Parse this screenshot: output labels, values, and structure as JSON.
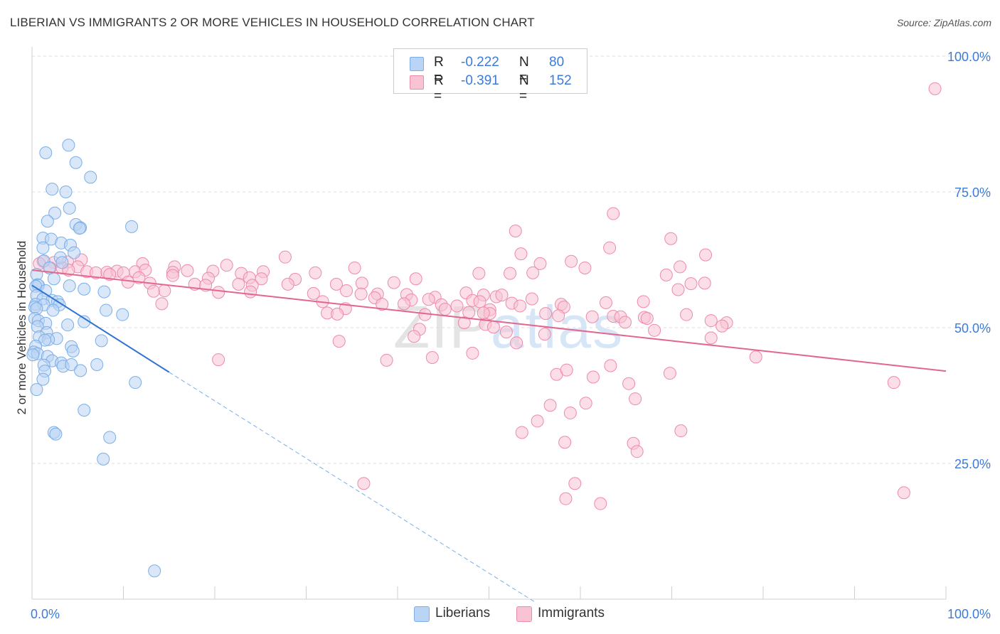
{
  "title": "LIBERIAN VS IMMIGRANTS 2 OR MORE VEHICLES IN HOUSEHOLD CORRELATION CHART",
  "source": "Source: ZipAtlas.com",
  "watermark": {
    "zip": "ZIP",
    "atlas": "atlas"
  },
  "legend": {
    "r_label": "R =",
    "n_label": "N =",
    "rows": [
      {
        "name": "Liberians",
        "r": "-0.222",
        "n": "80",
        "color": "#7aaee8",
        "fill": "#b9d4f4"
      },
      {
        "name": "Immigrants",
        "r": "-0.391",
        "n": "152",
        "color": "#ee8aaa",
        "fill": "#f8c3d3"
      }
    ]
  },
  "chart_data": {
    "type": "scatter",
    "ylabel": "2 or more Vehicles in Household",
    "xlabel": "",
    "x_tick_labels": [
      "0.0%",
      "100.0%"
    ],
    "y_tick_labels": [
      "25.0%",
      "50.0%",
      "75.0%",
      "100.0%"
    ],
    "y_ticks": [
      25,
      50,
      75,
      100
    ],
    "xlim": [
      0,
      100
    ],
    "ylim": [
      0,
      100
    ],
    "grid": true,
    "series": [
      {
        "name": "Liberians",
        "color": "#7aaee8",
        "trend": {
          "x0": 0,
          "y0": 57.8,
          "x1": 15,
          "y1": 41.8,
          "dash_to_x": 55,
          "dash_to_y": -0.5
        },
        "points": [
          [
            4.0,
            83.6
          ],
          [
            1.5,
            82.2
          ],
          [
            4.8,
            80.4
          ],
          [
            6.4,
            77.7
          ],
          [
            2.2,
            75.5
          ],
          [
            3.7,
            75.0
          ],
          [
            4.1,
            72.0
          ],
          [
            2.5,
            71.1
          ],
          [
            1.7,
            69.6
          ],
          [
            4.8,
            69.0
          ],
          [
            5.3,
            68.4
          ],
          [
            5.2,
            68.3
          ],
          [
            10.9,
            68.6
          ],
          [
            1.2,
            66.5
          ],
          [
            2.1,
            66.3
          ],
          [
            3.2,
            65.6
          ],
          [
            1.2,
            64.7
          ],
          [
            4.2,
            65.2
          ],
          [
            4.6,
            63.8
          ],
          [
            3.1,
            62.9
          ],
          [
            1.3,
            62.3
          ],
          [
            3.3,
            62.0
          ],
          [
            1.9,
            61.0
          ],
          [
            0.5,
            59.8
          ],
          [
            2.4,
            59.0
          ],
          [
            0.6,
            57.9
          ],
          [
            0.7,
            57.8
          ],
          [
            0.4,
            57.6
          ],
          [
            4.1,
            57.7
          ],
          [
            1.5,
            56.8
          ],
          [
            5.7,
            57.1
          ],
          [
            7.9,
            56.6
          ],
          [
            0.5,
            55.9
          ],
          [
            1.2,
            55.3
          ],
          [
            2.2,
            55.0
          ],
          [
            2.8,
            54.8
          ],
          [
            0.4,
            54.3
          ],
          [
            1.3,
            54.2
          ],
          [
            3.0,
            54.2
          ],
          [
            0.3,
            53.8
          ],
          [
            0.5,
            53.5
          ],
          [
            2.3,
            53.2
          ],
          [
            8.1,
            53.2
          ],
          [
            9.9,
            52.4
          ],
          [
            0.3,
            51.7
          ],
          [
            0.7,
            51.3
          ],
          [
            1.5,
            50.8
          ],
          [
            3.9,
            50.5
          ],
          [
            5.7,
            51.1
          ],
          [
            0.6,
            50.2
          ],
          [
            1.6,
            49.1
          ],
          [
            0.8,
            48.3
          ],
          [
            2.7,
            48.0
          ],
          [
            1.8,
            47.8
          ],
          [
            7.6,
            47.6
          ],
          [
            1.4,
            47.7
          ],
          [
            0.4,
            46.6
          ],
          [
            4.3,
            46.5
          ],
          [
            0.2,
            45.5
          ],
          [
            0.6,
            45.2
          ],
          [
            1.7,
            44.7
          ],
          [
            4.5,
            45.7
          ],
          [
            2.2,
            43.9
          ],
          [
            1.3,
            43.1
          ],
          [
            3.2,
            43.5
          ],
          [
            3.4,
            42.9
          ],
          [
            4.3,
            43.2
          ],
          [
            7.1,
            43.2
          ],
          [
            1.4,
            42.0
          ],
          [
            5.3,
            42.1
          ],
          [
            1.2,
            40.5
          ],
          [
            11.3,
            39.9
          ],
          [
            0.5,
            38.6
          ],
          [
            5.7,
            34.8
          ],
          [
            2.4,
            30.7
          ],
          [
            2.6,
            30.4
          ],
          [
            8.5,
            29.8
          ],
          [
            7.8,
            25.8
          ],
          [
            13.4,
            5.2
          ],
          [
            0.1,
            45.0
          ]
        ]
      },
      {
        "name": "Immigrants",
        "color": "#ee8aaa",
        "trend": {
          "x0": 0,
          "y0": 60.6,
          "x1": 100,
          "y1": 42.0
        },
        "points": [
          [
            98.8,
            94.0
          ],
          [
            63.6,
            71.0
          ],
          [
            52.9,
            67.8
          ],
          [
            69.9,
            66.4
          ],
          [
            63.2,
            64.7
          ],
          [
            53.5,
            63.6
          ],
          [
            73.7,
            63.4
          ],
          [
            27.7,
            63.0
          ],
          [
            1.2,
            62.2
          ],
          [
            2.4,
            62.0
          ],
          [
            5.4,
            62.5
          ],
          [
            3.9,
            62.1
          ],
          [
            0.8,
            61.8
          ],
          [
            5.0,
            61.2
          ],
          [
            12.1,
            61.8
          ],
          [
            15.6,
            61.2
          ],
          [
            21.3,
            61.5
          ],
          [
            35.3,
            61.0
          ],
          [
            55.6,
            61.8
          ],
          [
            59.0,
            62.2
          ],
          [
            60.5,
            61.0
          ],
          [
            70.9,
            61.2
          ],
          [
            2.0,
            61.0
          ],
          [
            3.3,
            61.0
          ],
          [
            4.0,
            60.6
          ],
          [
            6.0,
            60.3
          ],
          [
            7.0,
            60.1
          ],
          [
            8.2,
            60.2
          ],
          [
            9.3,
            60.4
          ],
          [
            11.3,
            60.3
          ],
          [
            12.4,
            60.6
          ],
          [
            15.4,
            60.2
          ],
          [
            17.0,
            60.5
          ],
          [
            19.8,
            60.4
          ],
          [
            22.9,
            60.0
          ],
          [
            25.3,
            60.3
          ],
          [
            31.0,
            60.1
          ],
          [
            48.9,
            60.0
          ],
          [
            52.3,
            60.0
          ],
          [
            54.8,
            60.1
          ],
          [
            69.4,
            59.7
          ],
          [
            8.5,
            59.8
          ],
          [
            10.0,
            60.1
          ],
          [
            11.7,
            59.2
          ],
          [
            15.4,
            59.6
          ],
          [
            19.3,
            59.1
          ],
          [
            23.8,
            59.2
          ],
          [
            25.1,
            59.0
          ],
          [
            28.8,
            58.9
          ],
          [
            36.1,
            58.2
          ],
          [
            39.6,
            58.3
          ],
          [
            42.0,
            59.0
          ],
          [
            72.1,
            58.1
          ],
          [
            73.6,
            58.2
          ],
          [
            10.5,
            58.4
          ],
          [
            12.9,
            58.2
          ],
          [
            17.8,
            58.0
          ],
          [
            19.0,
            57.8
          ],
          [
            22.6,
            58.0
          ],
          [
            24.1,
            57.8
          ],
          [
            28.0,
            58.0
          ],
          [
            33.3,
            58.0
          ],
          [
            70.7,
            57.0
          ],
          [
            14.5,
            56.8
          ],
          [
            13.3,
            56.7
          ],
          [
            20.4,
            56.5
          ],
          [
            23.9,
            56.6
          ],
          [
            30.8,
            56.3
          ],
          [
            34.4,
            56.8
          ],
          [
            36.0,
            56.2
          ],
          [
            37.8,
            56.2
          ],
          [
            41.0,
            56.1
          ],
          [
            47.5,
            56.4
          ],
          [
            49.4,
            56.0
          ],
          [
            50.8,
            55.7
          ],
          [
            51.4,
            56.0
          ],
          [
            37.5,
            55.5
          ],
          [
            44.1,
            55.6
          ],
          [
            54.7,
            55.3
          ],
          [
            41.5,
            55.1
          ],
          [
            43.4,
            55.2
          ],
          [
            48.2,
            55.0
          ],
          [
            49.0,
            54.8
          ],
          [
            66.9,
            54.8
          ],
          [
            14.2,
            54.4
          ],
          [
            31.8,
            54.8
          ],
          [
            38.3,
            54.3
          ],
          [
            40.7,
            54.4
          ],
          [
            44.8,
            54.2
          ],
          [
            52.5,
            54.5
          ],
          [
            57.9,
            54.3
          ],
          [
            62.8,
            54.6
          ],
          [
            53.4,
            54.0
          ],
          [
            46.5,
            54.0
          ],
          [
            50.1,
            53.3
          ],
          [
            34.3,
            53.5
          ],
          [
            58.2,
            53.8
          ],
          [
            45.2,
            53.4
          ],
          [
            47.8,
            52.8
          ],
          [
            50.1,
            52.6
          ],
          [
            32.3,
            52.7
          ],
          [
            33.4,
            52.5
          ],
          [
            43.0,
            52.4
          ],
          [
            49.4,
            52.7
          ],
          [
            56.2,
            52.6
          ],
          [
            57.6,
            52.2
          ],
          [
            61.3,
            52.0
          ],
          [
            63.6,
            52.1
          ],
          [
            64.4,
            52.0
          ],
          [
            67.0,
            51.9
          ],
          [
            67.3,
            51.7
          ],
          [
            71.6,
            52.4
          ],
          [
            74.3,
            51.3
          ],
          [
            47.3,
            50.9
          ],
          [
            49.6,
            50.6
          ],
          [
            50.5,
            50.1
          ],
          [
            51.9,
            49.2
          ],
          [
            42.4,
            49.7
          ],
          [
            64.9,
            51.0
          ],
          [
            76.0,
            50.9
          ],
          [
            75.5,
            50.3
          ],
          [
            68.1,
            49.5
          ],
          [
            56.1,
            48.8
          ],
          [
            74.3,
            48.1
          ],
          [
            41.8,
            48.4
          ],
          [
            33.6,
            47.5
          ],
          [
            53.0,
            47.2
          ],
          [
            48.2,
            45.3
          ],
          [
            43.8,
            44.5
          ],
          [
            79.2,
            44.6
          ],
          [
            20.4,
            44.1
          ],
          [
            38.8,
            44.0
          ],
          [
            63.3,
            43.0
          ],
          [
            69.8,
            41.6
          ],
          [
            57.4,
            41.4
          ],
          [
            61.4,
            40.9
          ],
          [
            58.5,
            42.2
          ],
          [
            65.3,
            39.7
          ],
          [
            94.3,
            39.9
          ],
          [
            66.0,
            36.9
          ],
          [
            60.6,
            36.1
          ],
          [
            56.7,
            35.7
          ],
          [
            58.9,
            34.3
          ],
          [
            55.3,
            32.8
          ],
          [
            71.0,
            31.0
          ],
          [
            53.6,
            30.7
          ],
          [
            58.3,
            28.9
          ],
          [
            65.8,
            28.7
          ],
          [
            66.2,
            27.2
          ],
          [
            36.3,
            21.3
          ],
          [
            59.4,
            21.3
          ],
          [
            58.4,
            18.5
          ],
          [
            95.4,
            19.6
          ],
          [
            62.2,
            17.6
          ]
        ]
      }
    ]
  }
}
